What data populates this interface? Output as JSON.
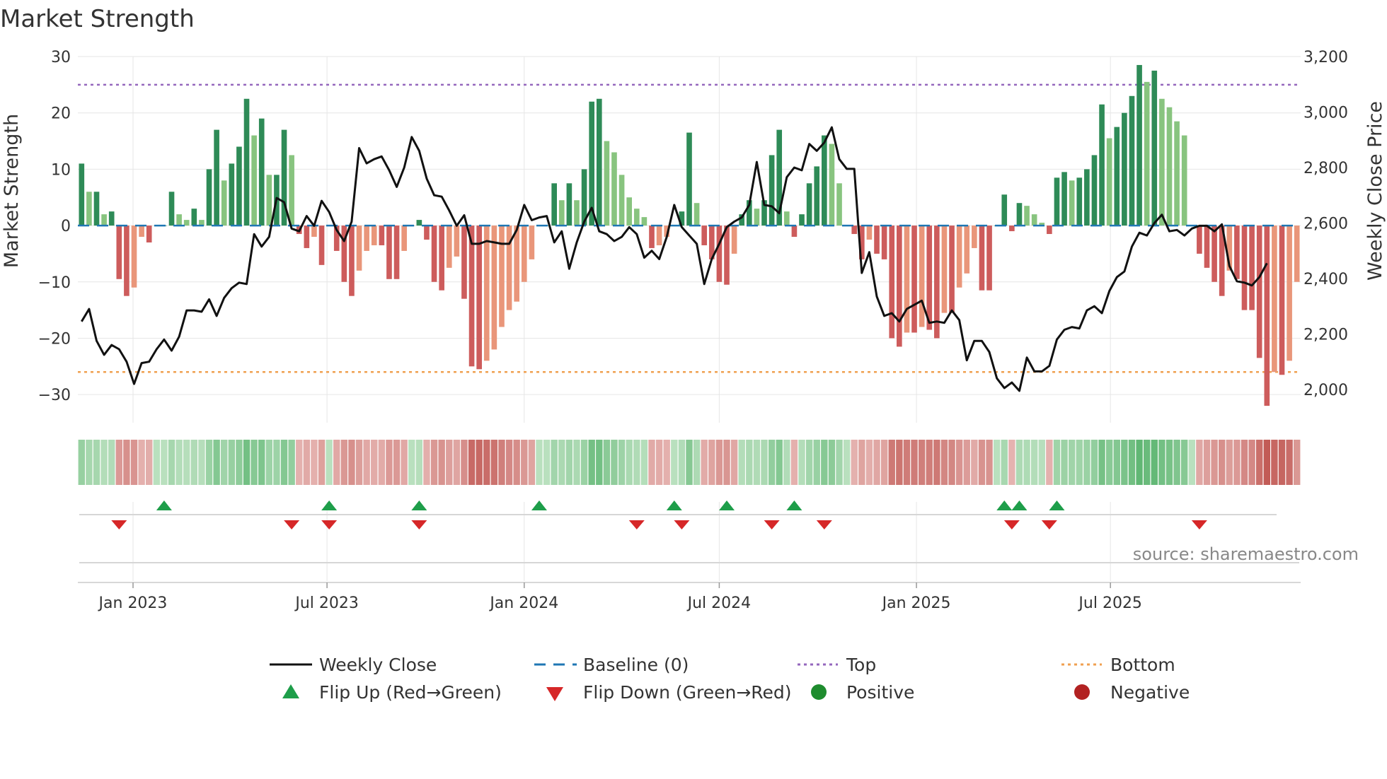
{
  "chart_data": {
    "type": "bar+line",
    "title": "Market Strength",
    "ylabel_left": "Market Strength",
    "ylabel_right": "Weekly Close Price",
    "ylim_left": [
      -35,
      30
    ],
    "ylim_right": [
      1880,
      3200
    ],
    "yticks_left": [
      30,
      20,
      10,
      0,
      -10,
      -20,
      -30
    ],
    "yticks_left_labels": [
      "30",
      "20",
      "10",
      "0",
      "−10",
      "−20",
      "−30"
    ],
    "yticks_right": [
      3200,
      3000,
      2800,
      2600,
      2400,
      2200,
      2000
    ],
    "yticks_right_labels": [
      "3,200",
      "3,000",
      "2,800",
      "2,600",
      "2,400",
      "2,200",
      "2,000"
    ],
    "top_line": 25,
    "bottom_line": -26,
    "x_start": "2022-11-14",
    "week_step_days": 7,
    "x_ticks": [
      {
        "date": "2023-01-01",
        "label": "Jan 2023"
      },
      {
        "date": "2023-07-01",
        "label": "Jul 2023"
      },
      {
        "date": "2024-01-01",
        "label": "Jan 2024"
      },
      {
        "date": "2024-07-01",
        "label": "Jul 2024"
      },
      {
        "date": "2025-01-01",
        "label": "Jan 2025"
      },
      {
        "date": "2025-07-01",
        "label": "Jul 2025"
      }
    ],
    "strength": [
      11,
      6,
      6,
      2,
      2.5,
      -9.5,
      -12.5,
      -11,
      -2,
      -3,
      0,
      0,
      6,
      2,
      1,
      3,
      1,
      10,
      17,
      8,
      11,
      14,
      22.5,
      16,
      19,
      9,
      9,
      17,
      12.5,
      -1.5,
      -4,
      -2,
      -7,
      0,
      -4.5,
      -10,
      -12.5,
      -8,
      -4.5,
      -3.5,
      -3.5,
      -9.5,
      -9.5,
      -4.5,
      0,
      1,
      -2.5,
      -10,
      -11.5,
      -7.5,
      -5.5,
      -13,
      -25,
      -25.5,
      -24,
      -22,
      -18,
      -15,
      -13.5,
      -10,
      -6,
      0,
      0,
      7.5,
      4.5,
      7.5,
      4.5,
      10,
      22,
      22.5,
      15,
      13,
      9,
      5,
      3,
      1.5,
      -4,
      -3.5,
      -2,
      0,
      2.5,
      16.5,
      4,
      -3.5,
      -6,
      -10,
      -10.5,
      -5,
      2,
      4.5,
      3,
      4.5,
      12.5,
      17,
      2.5,
      -2,
      2,
      7.5,
      10.5,
      16,
      14.5,
      7.5,
      0,
      -1.5,
      -6,
      -2.5,
      -5,
      -6,
      -20,
      -21.5,
      -19,
      -19,
      -18,
      -18.5,
      -20,
      -15.5,
      -15.5,
      -11,
      -8.5,
      -4,
      -11.5,
      -11.5,
      0,
      5.5,
      -1,
      4,
      3.5,
      2,
      0.5,
      -1.5,
      8.5,
      9.5,
      8,
      8.5,
      10,
      12.5,
      21.5,
      15.5,
      17.5,
      20,
      23,
      28.5,
      25.5,
      27.5,
      22.5,
      21,
      18.5,
      16,
      0,
      -5,
      -7.5,
      -10,
      -12.5,
      -8,
      -9.5,
      -15,
      -15,
      -23.5,
      -32,
      -26,
      -26.5,
      -24,
      -10
    ],
    "close": [
      2245,
      2290,
      2175,
      2125,
      2160,
      2145,
      2100,
      2020,
      2095,
      2100,
      2145,
      2180,
      2140,
      2190,
      2285,
      2285,
      2280,
      2325,
      2265,
      2330,
      2365,
      2385,
      2380,
      2560,
      2515,
      2550,
      2690,
      2675,
      2580,
      2570,
      2625,
      2590,
      2680,
      2640,
      2575,
      2535,
      2605,
      2870,
      2815,
      2830,
      2840,
      2790,
      2730,
      2800,
      2910,
      2860,
      2760,
      2700,
      2695,
      2645,
      2590,
      2628,
      2525,
      2525,
      2535,
      2530,
      2525,
      2525,
      2575,
      2665,
      2610,
      2620,
      2625,
      2530,
      2570,
      2435,
      2530,
      2605,
      2655,
      2570,
      2560,
      2535,
      2550,
      2585,
      2560,
      2475,
      2500,
      2470,
      2550,
      2665,
      2585,
      2555,
      2525,
      2380,
      2470,
      2525,
      2585,
      2605,
      2620,
      2665,
      2820,
      2665,
      2660,
      2635,
      2765,
      2800,
      2790,
      2885,
      2860,
      2890,
      2945,
      2830,
      2795,
      2795,
      2420,
      2495,
      2335,
      2265,
      2275,
      2245,
      2290,
      2305,
      2320,
      2240,
      2245,
      2240,
      2285,
      2250,
      2105,
      2175,
      2175,
      2135,
      2040,
      2005,
      2025,
      1995,
      2115,
      2065,
      2065,
      2085,
      2180,
      2215,
      2225,
      2220,
      2285,
      2300,
      2275,
      2355,
      2405,
      2425,
      2515,
      2565,
      2555,
      2600,
      2630,
      2570,
      2575,
      2555,
      2580,
      2590,
      2590,
      2570,
      2595,
      2445,
      2390,
      2385,
      2375,
      2405,
      2455
    ],
    "tile_strip": "one tile per week, colour by strength",
    "flip_up_weeks": [
      11,
      33,
      45,
      61,
      79,
      86,
      95,
      123,
      125,
      130
    ],
    "flip_down_weeks": [
      5,
      28,
      33,
      45,
      74,
      80,
      92,
      99,
      124,
      129,
      149
    ],
    "legend": [
      {
        "key": "weekly_close",
        "label": "Weekly Close"
      },
      {
        "key": "baseline",
        "label": "Baseline (0)"
      },
      {
        "key": "top",
        "label": "Top"
      },
      {
        "key": "bottom",
        "label": "Bottom"
      },
      {
        "key": "flip_up",
        "label": "Flip Up (Red→Green)"
      },
      {
        "key": "flip_down",
        "label": "Flip Down (Green→Red)"
      },
      {
        "key": "positive",
        "label": "Positive"
      },
      {
        "key": "negative",
        "label": "Negative"
      }
    ],
    "source": "source: sharemaestro.com"
  },
  "colors": {
    "close_line": "#111111",
    "baseline": "#1f77b4",
    "top": "#9467bd",
    "bottom": "#f0a050",
    "pos_dark": "#2e8b57",
    "pos_light": "#88c47f",
    "neg_dark": "#cd5c5c",
    "neg_light": "#e9967a",
    "flip_up": "#1e9e4a",
    "flip_down": "#d62728",
    "legend_positive": "#1e8c2e",
    "legend_negative": "#b22222",
    "grid": "#e6e6e6",
    "source": "#888888"
  }
}
